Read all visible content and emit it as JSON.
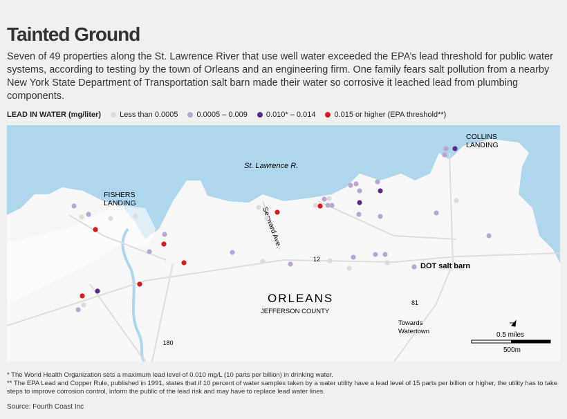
{
  "header": {
    "title": "Tainted Ground",
    "description": "Seven of 49 properties along the St. Lawrence River that use well water exceeded the EPA’s lead threshold for public water systems, according to testing by the town of Orleans and an engineering firm. One family fears salt pollution from a nearby New York State Department of Transportation salt barn made their water so corrosive it leached lead from plumbing components."
  },
  "legend": {
    "title": "LEAD IN WATER (mg/liter)",
    "items": [
      {
        "label": "Less than 0.0005",
        "color": "#dcdcdc"
      },
      {
        "label": "0.0005 – 0.009",
        "color": "#b9a6d3"
      },
      {
        "label": "0.010* – 0.014",
        "color": "#5b2a86"
      },
      {
        "label": "0.015 or higher (EPA threshold**)",
        "color": "#d7191c"
      }
    ]
  },
  "map": {
    "labels": {
      "river": "St. Lawrence R.",
      "fishers": "FISHERS LANDING",
      "collins": "COLLINS LANDING",
      "seaway": "Seaward Ave.",
      "route12": "12",
      "salt_barn": "DOT salt barn",
      "town": "ORLEANS",
      "county": "JEFFERSON COUNTY",
      "route81": "81",
      "route180": "180",
      "towards": "Towards Watertown",
      "scale_miles": "0.5 miles",
      "scale_m": "500m"
    }
  },
  "footnotes": [
    "* The World Health Organization sets a maximum lead level of 0.010 mg/L (10 parts per billion) in drinking water.",
    "** The EPA Lead and Copper Rule, published in 1991, states that if 10 percent of water samples taken by a water utility have a lead level of 15 parts per billion or higher, the utility has to take steps to improve corrosion control, inform the public of the lead risk and may have to replace lead water lines."
  ],
  "source": "Source: Fourth Coast Inc"
}
